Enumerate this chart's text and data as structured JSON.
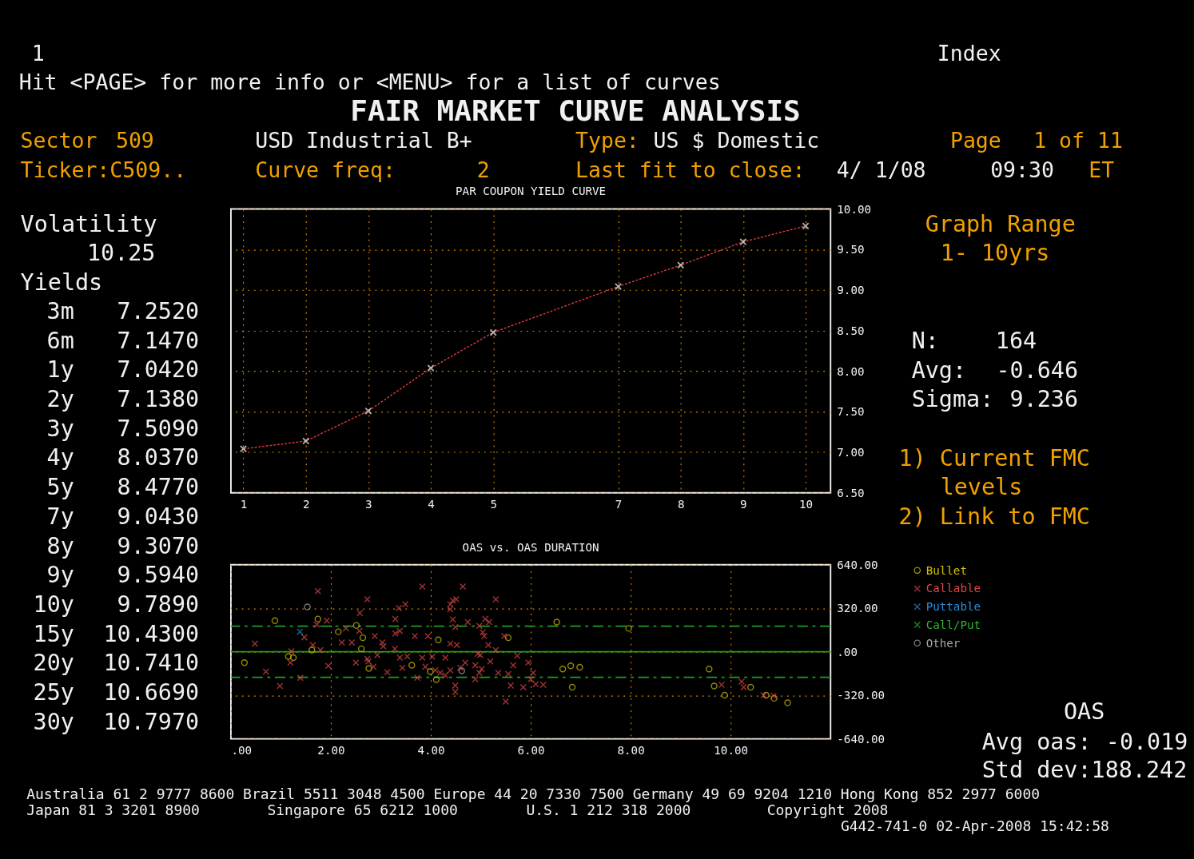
{
  "chart_data": [
    {
      "type": "other",
      "title": "FAIR MARKET CURVE ANALYSIS",
      "annotations": [
        "1",
        "Index",
        "Hit <PAGE> for more info or <MENU> for a list of curves",
        "Sector",
        "509",
        "USD Industrial B+",
        "Type:",
        "US $ Domestic",
        "Page",
        "1 of 11",
        "Ticker:C509..",
        "Curve freq:",
        "2",
        "Last fit to close:",
        "4/ 1/08",
        "09:30",
        "ET"
      ]
    },
    {
      "type": "other",
      "annotations": [
        "Volatility",
        "10.25",
        "Yields",
        "3m",
        "7.2520",
        "6m",
        "7.1470",
        "1y",
        "7.0420",
        "2y",
        "7.1380",
        "3y",
        "7.5090",
        "4y",
        "8.0370",
        "5y",
        "8.4770",
        "7y",
        "9.0430",
        "8y",
        "9.3070",
        "9y",
        "9.5940",
        "10y",
        "9.7890",
        "15y",
        "10.4300",
        "20y",
        "10.7410",
        "25y",
        "10.6690",
        "30y",
        "10.7970"
      ]
    },
    {
      "type": "line",
      "title": "PAR COUPON YIELD CURVE",
      "x": [
        1,
        2,
        3,
        4,
        5,
        7,
        8,
        9,
        10
      ],
      "series": [
        {
          "color": "#e03a3a",
          "values": [
            7.042,
            7.138,
            7.509,
            8.037,
            8.477,
            9.043,
            9.307,
            9.594,
            9.789
          ]
        }
      ],
      "xlim": [
        0.8,
        10.4
      ],
      "xticks": [
        1,
        2,
        3,
        4,
        5,
        7,
        8,
        9,
        10
      ],
      "ylim": [
        6.5,
        10.0
      ],
      "yticks": [
        {
          "value": 6.5,
          "label": "6.50"
        },
        {
          "value": 7.0,
          "label": "7.00"
        },
        {
          "value": 7.5,
          "label": "7.50"
        },
        {
          "value": 8.0,
          "label": "8.00"
        },
        {
          "value": 8.5,
          "label": "8.50"
        },
        {
          "value": 9.0,
          "label": "9.00"
        },
        {
          "value": 9.5,
          "label": "9.50"
        },
        {
          "value": 10.0,
          "label": "10.00"
        }
      ],
      "grid": true,
      "marker": "cross",
      "line_style": "dotted"
    },
    {
      "type": "scatter",
      "title": "OAS vs. OAS DURATION",
      "legend": "right",
      "grid": true,
      "xlim": [
        0,
        12
      ],
      "xticks": [
        {
          "value": 0,
          "label": ".00"
        },
        {
          "value": 2,
          "label": "2.00"
        },
        {
          "value": 4,
          "label": "4.00"
        },
        {
          "value": 6,
          "label": "6.00"
        },
        {
          "value": 8,
          "label": "8.00"
        },
        {
          "value": 10,
          "label": "10.00"
        }
      ],
      "ylim": [
        -640,
        640
      ],
      "yticks": [
        {
          "value": -640,
          "label": "-640.00"
        },
        {
          "value": -320,
          "label": "-320.00"
        },
        {
          "value": 0,
          "label": ".00"
        },
        {
          "value": 320,
          "label": "320.00"
        },
        {
          "value": 640,
          "label": "640.00"
        }
      ],
      "ref_lines": [
        {
          "axis": "y",
          "value": 0,
          "color": "#1fa01f",
          "line_style": "solid"
        },
        {
          "axis": "y",
          "value": 188,
          "color": "#1fa01f",
          "line_style": "dashed"
        },
        {
          "axis": "y",
          "value": -188,
          "color": "#1fa01f",
          "line_style": "dashed"
        }
      ],
      "series": [
        {
          "name": "Bullet",
          "color": "#d4c400",
          "marker": "circle",
          "x": [
            0.88,
            1.74,
            2.51,
            2.15,
            2.64,
            2.61,
            1.62,
            1.15,
            1.25,
            0.27,
            2.76,
            3.62,
            3.99,
            4.15,
            4.11,
            5.55,
            6.52,
            7.96,
            6.64,
            6.8,
            6.98,
            6.83,
            9.57,
            9.67,
            9.88,
            10.4,
            10.71,
            10.87,
            11.14
          ],
          "values": [
            228,
            241,
            194,
            147,
            103,
            22,
            13,
            -34,
            -43,
            -80,
            -123,
            -99,
            -146,
            88,
            -205,
            103,
            218,
            172,
            -127,
            -103,
            -114,
            -261,
            -127,
            -252,
            -319,
            -261,
            -319,
            -342,
            -375
          ]
        },
        {
          "name": "Callable",
          "color": "#e04848",
          "marker": "cross",
          "x": [
            1.74,
            2.73,
            3.83,
            3.49,
            3.36,
            2.58,
            3.29,
            1.92,
            1.72,
            2.3,
            2.57,
            1.47,
            0.48,
            2.88,
            3.29,
            3.38,
            3.68,
            3.94,
            3.03,
            3.05,
            2.22,
            2.42,
            1.64,
            3.28,
            1.79,
            1.21,
            3.53,
            4.03,
            2.73,
            2.75,
            2.93,
            3.38,
            3.83,
            1.19,
            2.5,
            1.95,
            3.43,
            3.89,
            2.85,
            0.7,
            3.13,
            1.39,
            3.73,
            0.98,
            4.64,
            5.3,
            4.44,
            4.51,
            4.39,
            4.39,
            4.44,
            4.49,
            4.74,
            5.09,
            5.17,
            4.97,
            5.04,
            5.07,
            5.47,
            4.39,
            4.52,
            5.15,
            5.3,
            4.29,
            4.94,
            4.99,
            5.19,
            5.73,
            5.95,
            5.65,
            4.69,
            4.59,
            4.89,
            5.02,
            4.97,
            4.39,
            4.19,
            4.29,
            5.35,
            5.55,
            4.89,
            6.05,
            6.0,
            6.1,
            6.25,
            5.6,
            5.85,
            4.49,
            4.49,
            5.5,
            4.09,
            9.82,
            10.22,
            10.26,
            10.66,
            10.86
          ],
          "values": [
            446,
            386,
            480,
            349,
            321,
            284,
            241,
            228,
            200,
            172,
            153,
            106,
            60,
            116,
            134,
            153,
            116,
            116,
            69,
            41,
            69,
            69,
            50,
            22,
            13,
            4,
            -34,
            -36,
            -52,
            -71,
            -24,
            -43,
            -43,
            -80,
            -80,
            -103,
            -118,
            -110,
            -110,
            -146,
            -150,
            -192,
            -192,
            -252,
            480,
            386,
            377,
            386,
            349,
            312,
            237,
            181,
            218,
            241,
            218,
            190,
            144,
            116,
            116,
            60,
            50,
            50,
            13,
            -43,
            -15,
            -24,
            -71,
            -28,
            -80,
            -99,
            -80,
            -118,
            -99,
            -127,
            -155,
            -136,
            -155,
            -174,
            -155,
            -164,
            -202,
            -155,
            -202,
            -239,
            -243,
            -248,
            -261,
            -248,
            -295,
            -366,
            -136,
            -243,
            -220,
            -261,
            -319,
            -323
          ]
        },
        {
          "name": "Puttable",
          "color": "#2a8ee0",
          "marker": "cross",
          "x": [
            1.38
          ],
          "values": [
            147
          ]
        },
        {
          "name": "Call/Put",
          "color": "#2fb82f",
          "marker": "cross"
        },
        {
          "name": "Other",
          "color": "#a8a8a8",
          "marker": "circle",
          "x": [
            1.53,
            4.62
          ],
          "values": [
            330,
            -140
          ]
        }
      ]
    },
    {
      "type": "other",
      "annotations": [
        "Graph Range",
        "1- 10yrs",
        "N:",
        "164",
        "Avg:",
        "-0.646",
        "Sigma:",
        "9.236",
        "1) Current FMC",
        "levels",
        "2) Link to FMC"
      ]
    },
    {
      "type": "other",
      "annotations": [
        "OAS",
        "Avg oas:",
        "-0.019",
        "Std dev:188.242"
      ]
    },
    {
      "type": "other",
      "annotations": [
        "Australia 61 2 9777 8600 Brazil 5511 3048 4500 Europe 44 20 7330 7500 Germany 49 69 9204 1210 Hong Kong 852 2977 6000",
        "Japan 81 3 3201 8900",
        "Singapore 65 6212 1000",
        "U.S. 1 212 318 2000",
        "Copyright 2008",
        "G442-741-0 02-Apr-2008 15:42:58"
      ]
    }
  ]
}
